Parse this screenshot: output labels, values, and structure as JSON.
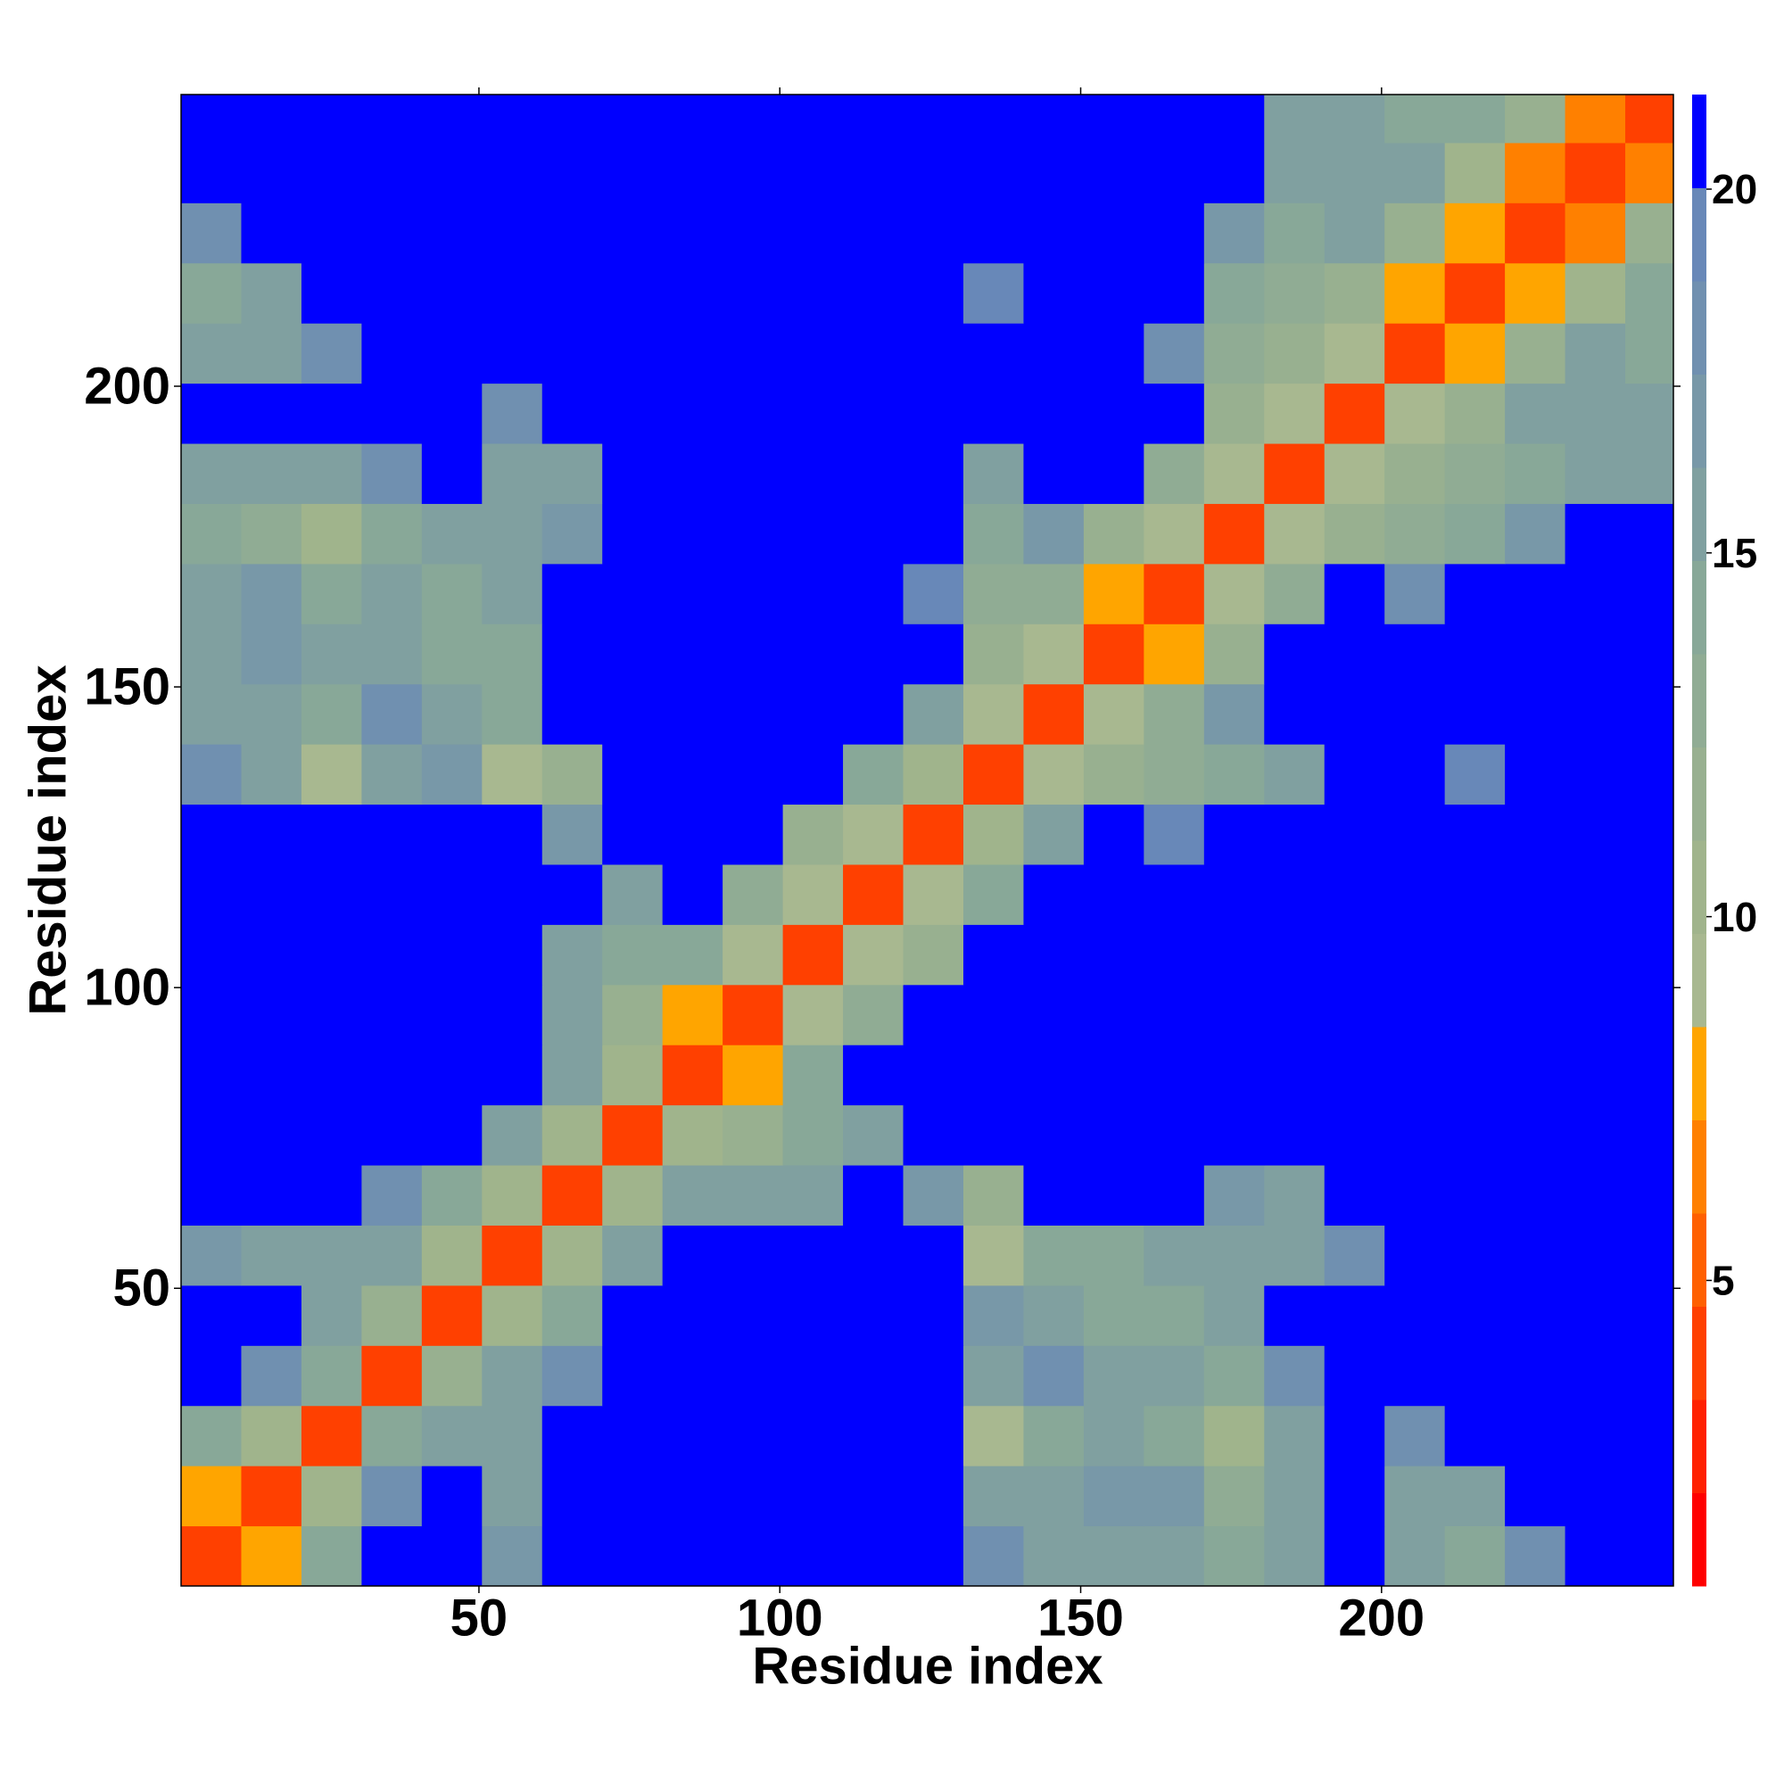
{
  "chart_data": {
    "type": "heatmap",
    "x_label": "Residue index",
    "y_label": "Residue index",
    "xlim": [
      0.5,
      248.5
    ],
    "ylim": [
      0.5,
      248.5
    ],
    "xticks": [
      50,
      100,
      150,
      200
    ],
    "yticks": [
      50,
      100,
      150,
      200
    ],
    "xbins": [
      0.5,
      10.5,
      20.5,
      30.5,
      40.5,
      50.5,
      60.5,
      70.5,
      80.5,
      90.5,
      100.5,
      110.5,
      120.5,
      130.5,
      140.5,
      150.5,
      160.5,
      170.5,
      180.5,
      190.5,
      200.5,
      210.5,
      220.5,
      230.5,
      240.5,
      248.5
    ],
    "ybins": [
      0.5,
      10.5,
      20.5,
      30.5,
      40.5,
      50.5,
      60.5,
      70.5,
      80.5,
      90.5,
      100.5,
      110.5,
      120.5,
      130.5,
      140.5,
      150.5,
      160.5,
      170.5,
      180.5,
      190.5,
      200.5,
      210.5,
      220.5,
      230.5,
      240.5,
      248.5
    ],
    "z": [
      [
        4,
        8,
        14,
        21,
        21,
        17,
        21,
        21,
        21,
        21,
        21,
        21,
        21,
        18,
        16,
        16,
        15,
        14,
        16,
        21,
        16,
        14,
        18,
        21,
        21
      ],
      [
        8,
        4,
        10,
        18,
        21,
        15,
        21,
        21,
        21,
        21,
        21,
        21,
        21,
        16,
        16,
        17,
        17,
        13,
        15,
        21,
        16,
        16,
        21,
        21,
        21
      ],
      [
        14,
        10,
        4,
        14,
        16,
        16,
        21,
        21,
        21,
        21,
        21,
        21,
        21,
        9,
        14,
        15,
        14,
        11,
        15,
        21,
        18,
        21,
        21,
        21,
        21
      ],
      [
        21,
        18,
        14,
        4,
        12,
        15,
        18,
        21,
        21,
        21,
        21,
        21,
        21,
        16,
        18,
        16,
        15,
        14,
        18,
        21,
        21,
        21,
        21,
        21,
        21
      ],
      [
        21,
        21,
        16,
        12,
        4,
        10,
        14,
        21,
        21,
        21,
        21,
        21,
        21,
        17,
        16,
        14,
        14,
        16,
        21,
        21,
        21,
        21,
        21,
        21,
        21
      ],
      [
        17,
        15,
        16,
        15,
        10,
        4,
        11,
        16,
        21,
        21,
        21,
        21,
        21,
        9,
        14,
        14,
        15,
        16,
        16,
        18,
        21,
        21,
        21,
        21,
        21
      ],
      [
        21,
        21,
        21,
        18,
        14,
        11,
        4,
        11,
        16,
        15,
        15,
        21,
        17,
        12,
        21,
        21,
        21,
        17,
        16,
        21,
        21,
        21,
        21,
        21,
        21
      ],
      [
        21,
        21,
        21,
        21,
        21,
        16,
        11,
        4,
        10,
        12,
        14,
        15,
        21,
        21,
        21,
        21,
        21,
        21,
        21,
        21,
        21,
        21,
        21,
        21,
        21
      ],
      [
        21,
        21,
        21,
        21,
        21,
        21,
        16,
        10,
        4,
        8,
        14,
        21,
        21,
        21,
        21,
        21,
        21,
        21,
        21,
        21,
        21,
        21,
        21,
        21,
        21
      ],
      [
        21,
        21,
        21,
        21,
        21,
        21,
        15,
        12,
        8,
        4,
        9,
        13,
        21,
        21,
        21,
        21,
        21,
        21,
        21,
        21,
        21,
        21,
        21,
        21,
        21
      ],
      [
        21,
        21,
        21,
        21,
        21,
        21,
        15,
        14,
        14,
        9,
        4,
        9,
        12,
        21,
        21,
        21,
        21,
        21,
        21,
        21,
        21,
        21,
        21,
        21,
        21
      ],
      [
        21,
        21,
        21,
        21,
        21,
        21,
        21,
        15,
        21,
        13,
        9,
        4,
        9,
        14,
        21,
        21,
        21,
        21,
        21,
        21,
        21,
        21,
        21,
        21,
        21
      ],
      [
        21,
        21,
        21,
        21,
        21,
        21,
        17,
        21,
        21,
        21,
        12,
        9,
        4,
        11,
        16,
        21,
        19,
        21,
        21,
        21,
        21,
        21,
        21,
        21,
        21
      ],
      [
        18,
        16,
        9,
        16,
        17,
        9,
        12,
        21,
        21,
        21,
        21,
        14,
        11,
        4,
        9,
        12,
        13,
        14,
        15,
        21,
        21,
        19,
        21,
        21,
        21
      ],
      [
        16,
        16,
        14,
        18,
        16,
        14,
        21,
        21,
        21,
        21,
        21,
        21,
        16,
        9,
        4,
        9,
        13,
        17,
        21,
        21,
        21,
        21,
        21,
        21,
        21
      ],
      [
        16,
        17,
        15,
        16,
        14,
        14,
        21,
        21,
        21,
        21,
        21,
        21,
        21,
        12,
        9,
        4,
        8,
        12,
        21,
        21,
        21,
        21,
        21,
        21,
        21
      ],
      [
        15,
        17,
        14,
        15,
        14,
        15,
        21,
        21,
        21,
        21,
        21,
        21,
        19,
        13,
        13,
        8,
        4,
        9,
        13,
        21,
        18,
        21,
        21,
        21,
        21
      ],
      [
        14,
        13,
        11,
        14,
        16,
        16,
        17,
        21,
        21,
        21,
        21,
        21,
        21,
        14,
        17,
        12,
        9,
        4,
        9,
        12,
        13,
        14,
        17,
        21,
        21
      ],
      [
        16,
        15,
        15,
        18,
        21,
        16,
        16,
        21,
        21,
        21,
        21,
        21,
        21,
        15,
        21,
        21,
        13,
        9,
        4,
        9,
        12,
        13,
        14,
        15,
        16
      ],
      [
        21,
        21,
        21,
        21,
        21,
        18,
        21,
        21,
        21,
        21,
        21,
        21,
        21,
        21,
        21,
        21,
        21,
        12,
        9,
        4,
        9,
        12,
        15,
        16,
        16
      ],
      [
        16,
        16,
        18,
        21,
        21,
        21,
        21,
        21,
        21,
        21,
        21,
        21,
        21,
        21,
        21,
        21,
        18,
        13,
        12,
        9,
        4,
        8,
        12,
        15,
        14
      ],
      [
        14,
        16,
        21,
        21,
        21,
        21,
        21,
        21,
        21,
        21,
        21,
        21,
        21,
        19,
        21,
        21,
        21,
        14,
        13,
        12,
        8,
        4,
        8,
        10,
        14
      ],
      [
        18,
        21,
        21,
        21,
        21,
        21,
        21,
        21,
        21,
        21,
        21,
        21,
        21,
        21,
        21,
        21,
        21,
        17,
        14,
        15,
        12,
        8,
        4,
        7,
        12
      ],
      [
        21,
        21,
        21,
        21,
        21,
        21,
        21,
        21,
        21,
        21,
        21,
        21,
        21,
        21,
        21,
        21,
        21,
        21,
        15,
        16,
        15,
        10,
        7,
        4,
        7
      ],
      [
        21,
        21,
        21,
        21,
        21,
        21,
        21,
        21,
        21,
        21,
        21,
        21,
        21,
        21,
        21,
        21,
        21,
        21,
        16,
        16,
        14,
        14,
        12,
        7,
        4
      ]
    ],
    "zlim": [
      0.8,
      21.3
    ],
    "colorbar_ticks": [
      5,
      10,
      15,
      20
    ],
    "colors": [
      "#ff0000",
      "#ff2000",
      "#ff4000",
      "#ff6000",
      "#ff8000",
      "#ffa500",
      "#a8b890",
      "#a0b48c",
      "#98b090",
      "#90ac94",
      "#88a898",
      "#80a0a0",
      "#7898a8",
      "#7090b0",
      "#6888b8",
      "#0000ff"
    ]
  }
}
